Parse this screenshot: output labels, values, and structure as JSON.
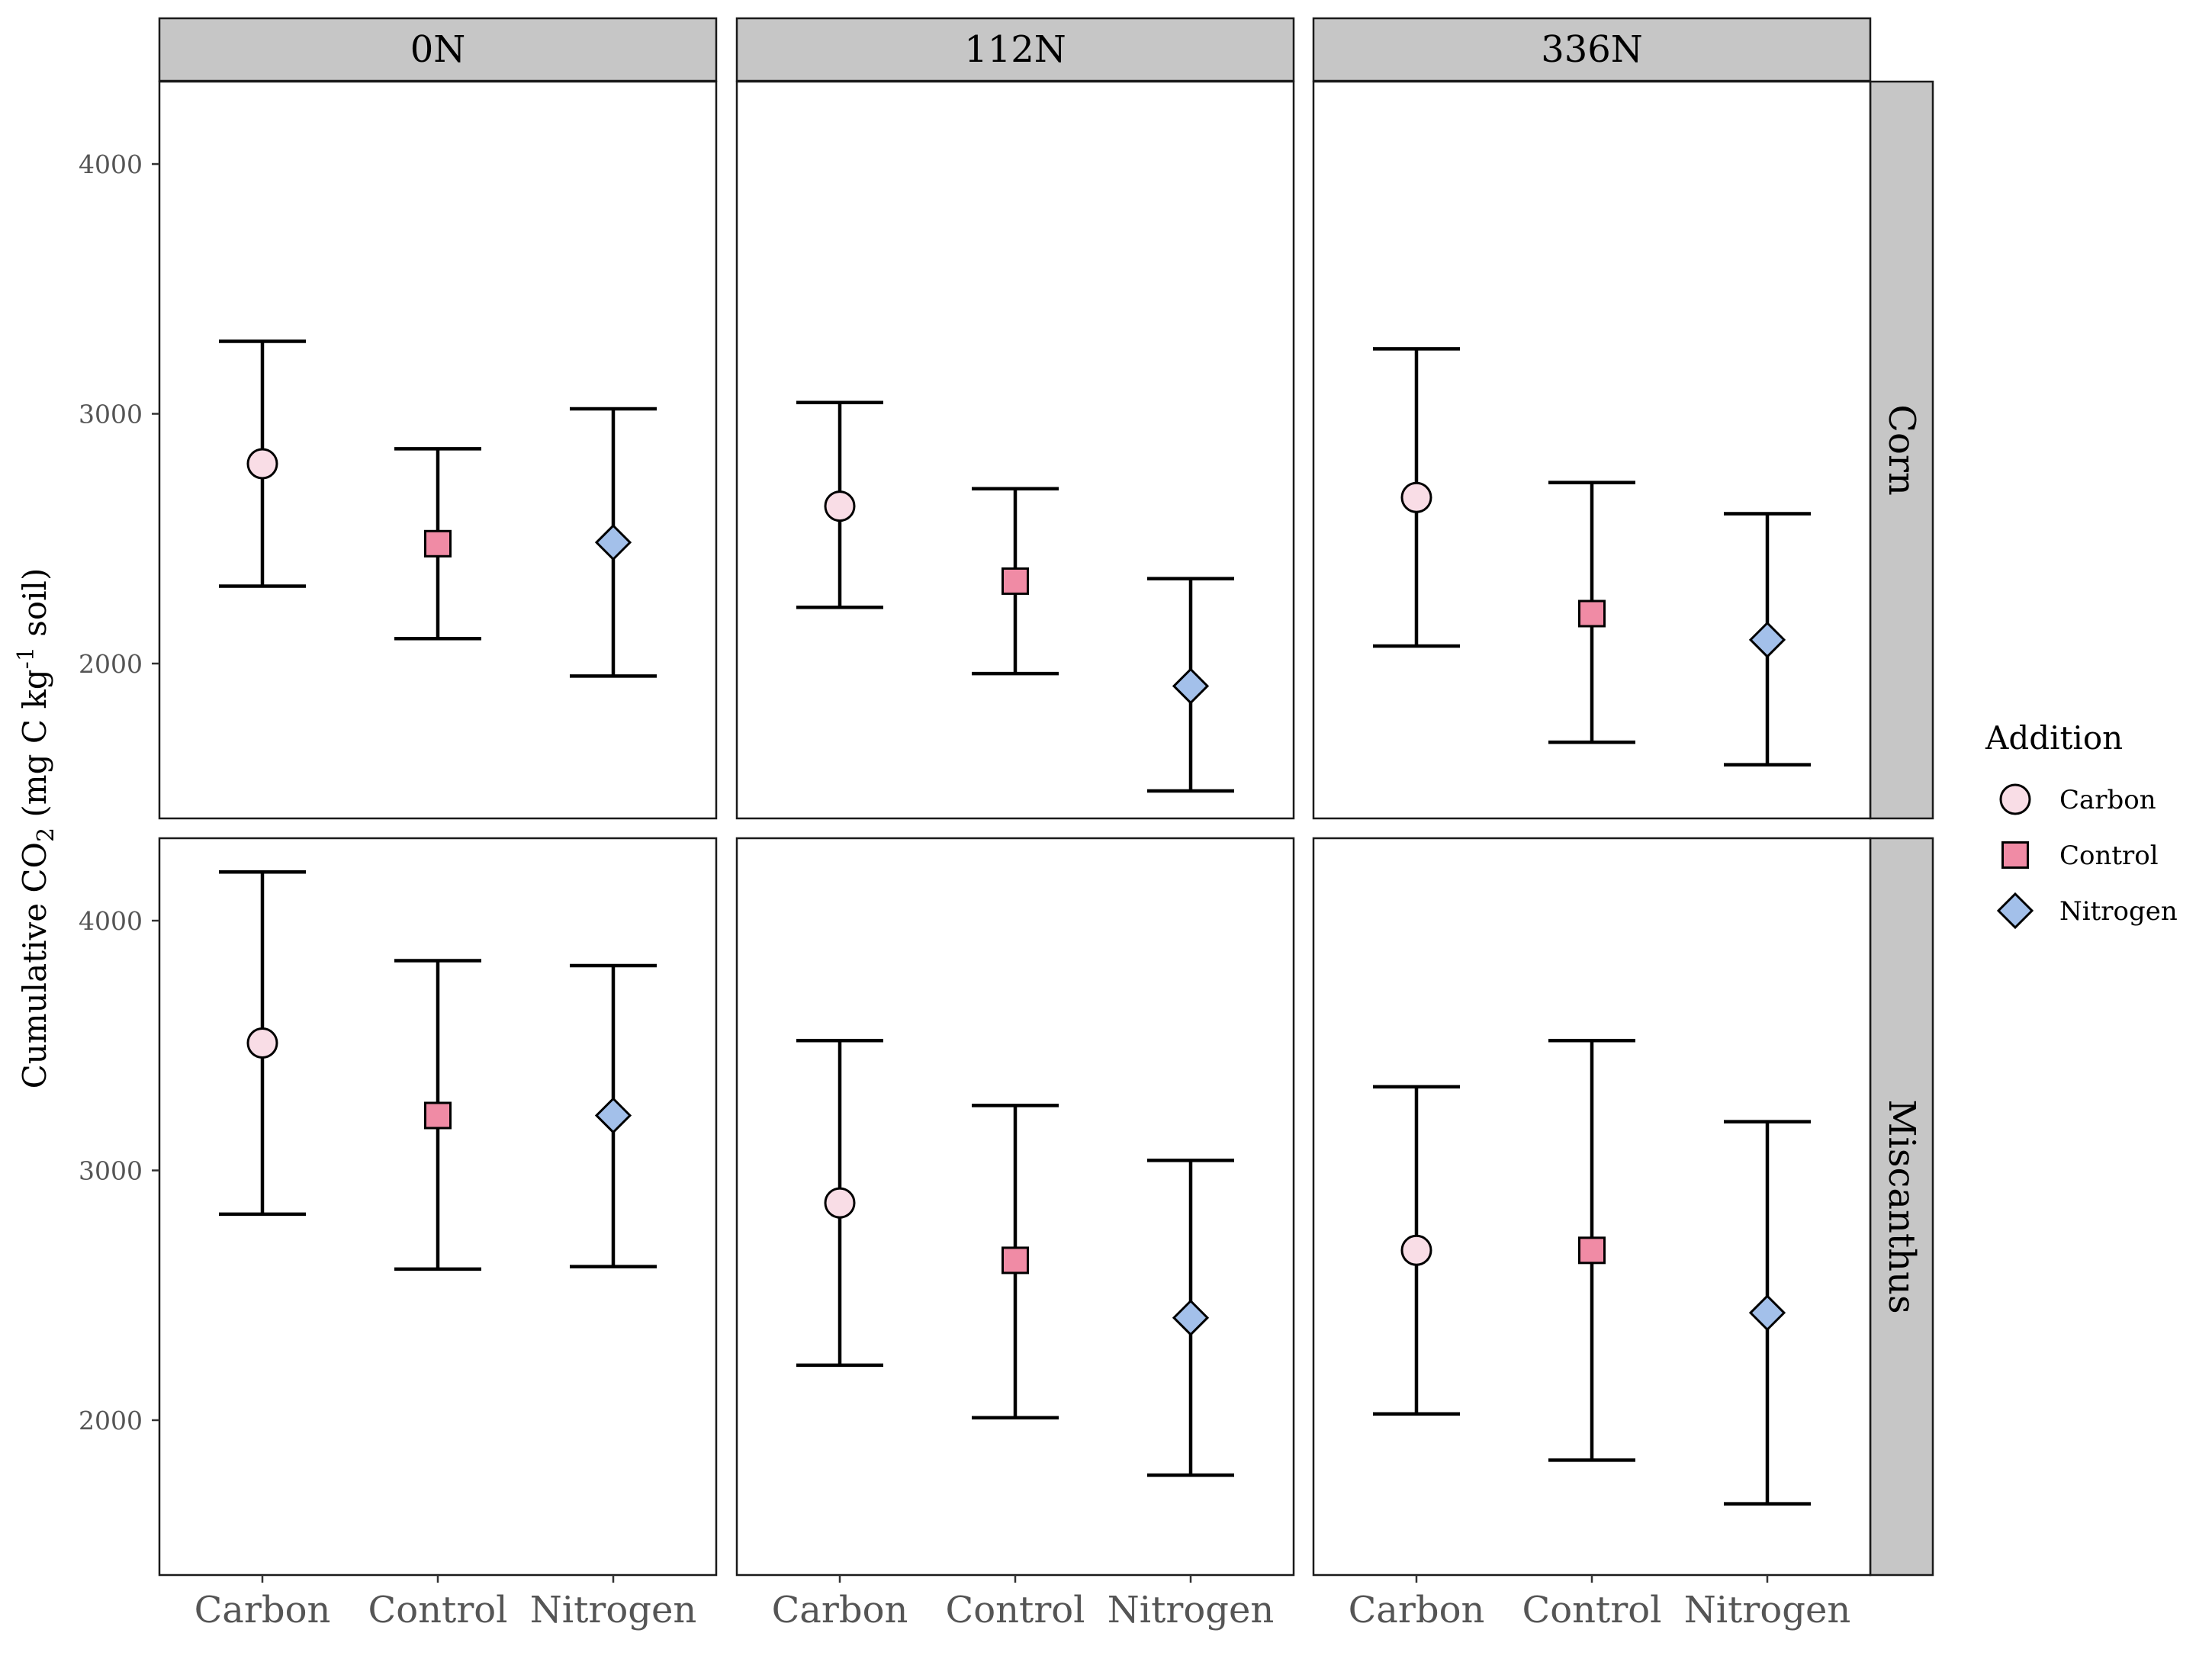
{
  "chart_data": {
    "type": "scatter",
    "subtype": "point-with-error-bars, faceted grid",
    "col_facets": [
      "0N",
      "112N",
      "336N"
    ],
    "row_facets": [
      "Corn",
      "Miscanthus"
    ],
    "categories": [
      "Carbon",
      "Control",
      "Nitrogen"
    ],
    "ylabel_parts": {
      "pre": "Cumulative CO",
      "sub": "2",
      "mid": " (mg C kg",
      "sup": "-1",
      "post": " soil)"
    },
    "ylim": [
      1380,
      4330
    ],
    "yticks": [
      2000,
      3000,
      4000
    ],
    "grid": false,
    "legend": {
      "title": "Addition",
      "position": "right",
      "entries": [
        {
          "label": "Carbon",
          "shape": "circle",
          "color": "#F9DDE6"
        },
        {
          "label": "Control",
          "shape": "square",
          "color": "#F08BA5"
        },
        {
          "label": "Nitrogen",
          "shape": "diamond",
          "color": "#A3C0EA"
        }
      ]
    },
    "panels": [
      {
        "row": "Corn",
        "col": "0N",
        "points": [
          {
            "category": "Carbon",
            "y": 2800,
            "ymin": 2310,
            "ymax": 3290
          },
          {
            "category": "Control",
            "y": 2480,
            "ymin": 2100,
            "ymax": 2860
          },
          {
            "category": "Nitrogen",
            "y": 2485,
            "ymin": 1950,
            "ymax": 3020
          }
        ]
      },
      {
        "row": "Corn",
        "col": "112N",
        "points": [
          {
            "category": "Carbon",
            "y": 2630,
            "ymin": 2225,
            "ymax": 3045
          },
          {
            "category": "Control",
            "y": 2330,
            "ymin": 1960,
            "ymax": 2700
          },
          {
            "category": "Nitrogen",
            "y": 1910,
            "ymin": 1490,
            "ymax": 2340
          }
        ]
      },
      {
        "row": "Corn",
        "col": "336N",
        "points": [
          {
            "category": "Carbon",
            "y": 2665,
            "ymin": 2070,
            "ymax": 3260
          },
          {
            "category": "Control",
            "y": 2200,
            "ymin": 1685,
            "ymax": 2725
          },
          {
            "category": "Nitrogen",
            "y": 2095,
            "ymin": 1595,
            "ymax": 2600
          }
        ]
      },
      {
        "row": "Miscanthus",
        "col": "0N",
        "points": [
          {
            "category": "Carbon",
            "y": 3510,
            "ymin": 2825,
            "ymax": 4195
          },
          {
            "category": "Control",
            "y": 3220,
            "ymin": 2605,
            "ymax": 3840
          },
          {
            "category": "Nitrogen",
            "y": 3220,
            "ymin": 2615,
            "ymax": 3820
          }
        ]
      },
      {
        "row": "Miscanthus",
        "col": "112N",
        "points": [
          {
            "category": "Carbon",
            "y": 2870,
            "ymin": 2220,
            "ymax": 3520
          },
          {
            "category": "Control",
            "y": 2640,
            "ymin": 2010,
            "ymax": 3260
          },
          {
            "category": "Nitrogen",
            "y": 2410,
            "ymin": 1780,
            "ymax": 3040
          }
        ]
      },
      {
        "row": "Miscanthus",
        "col": "336N",
        "points": [
          {
            "category": "Carbon",
            "y": 2680,
            "ymin": 2025,
            "ymax": 3335
          },
          {
            "category": "Control",
            "y": 2680,
            "ymin": 1840,
            "ymax": 3520
          },
          {
            "category": "Nitrogen",
            "y": 2430,
            "ymin": 1665,
            "ymax": 3195
          }
        ]
      }
    ]
  }
}
